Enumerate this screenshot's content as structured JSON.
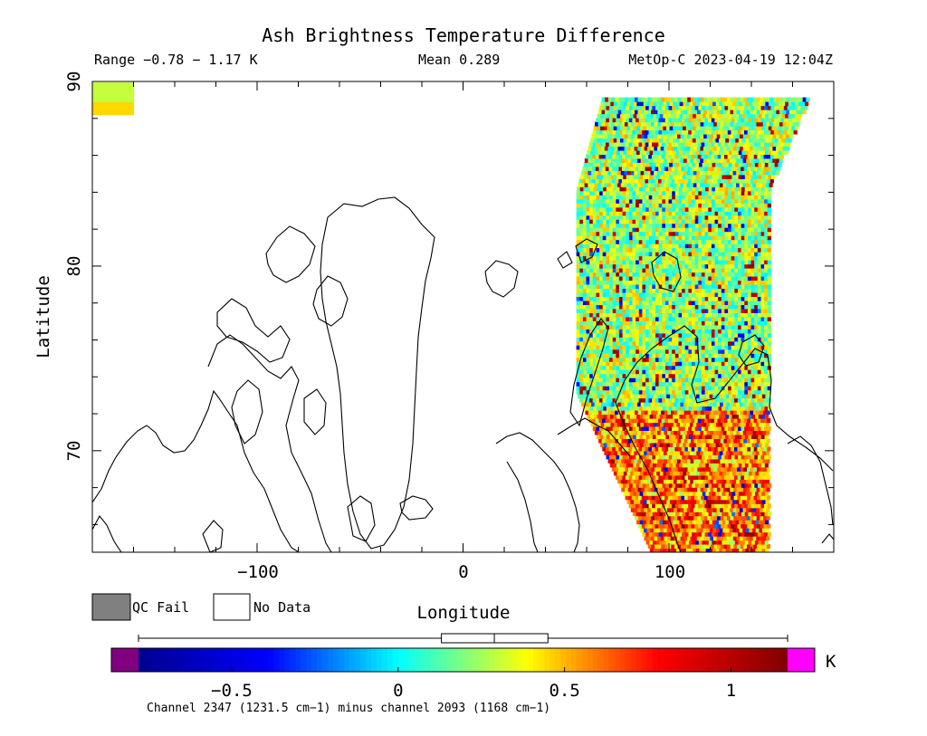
{
  "header": {
    "title": "Ash Brightness Temperature Difference",
    "range": "Range −0.78 − 1.17 K",
    "mean": "Mean 0.289",
    "satellite_time": "MetOp-C 2023-04-19 12:04Z"
  },
  "map": {
    "xlabel": "Longitude",
    "ylabel": "Latitude",
    "x_ticks": [
      {
        "value": -100,
        "label": "−100"
      },
      {
        "value": 0,
        "label": "0"
      },
      {
        "value": 100,
        "label": "100"
      }
    ],
    "y_ticks": [
      {
        "value": 70,
        "label": "70"
      },
      {
        "value": 80,
        "label": "80"
      },
      {
        "value": 90,
        "label": "90"
      }
    ],
    "xlim": [
      -180,
      180
    ],
    "ylim": [
      64.5,
      90
    ],
    "swath_lon_range": [
      55,
      148
    ],
    "swath_lat_range": [
      64.5,
      89
    ]
  },
  "legend": {
    "qc_fail_label": "QC Fail",
    "qc_fail_color": "#808080",
    "no_data_label": "No Data",
    "no_data_color": "#ffffff"
  },
  "colorbar": {
    "unit": "K",
    "range": [
      -0.78,
      1.17
    ],
    "ticks": [
      {
        "value": -0.5,
        "label": "−0.5"
      },
      {
        "value": 0,
        "label": "0"
      },
      {
        "value": 0.5,
        "label": "0.5"
      },
      {
        "value": 1,
        "label": "1"
      }
    ],
    "under_color": "#800080",
    "over_color": "#ff00ff",
    "colormap": [
      "#00008f",
      "#0000ff",
      "#00ffff",
      "#ffff00",
      "#ff0000",
      "#800000"
    ],
    "boxplot": {
      "whisker_low": -0.78,
      "q1": 0.13,
      "median": 0.289,
      "q3": 0.45,
      "whisker_high": 1.17
    },
    "caption": "Channel 2347 (1231.5 cm−1) minus channel 2093 (1168 cm−1)"
  }
}
